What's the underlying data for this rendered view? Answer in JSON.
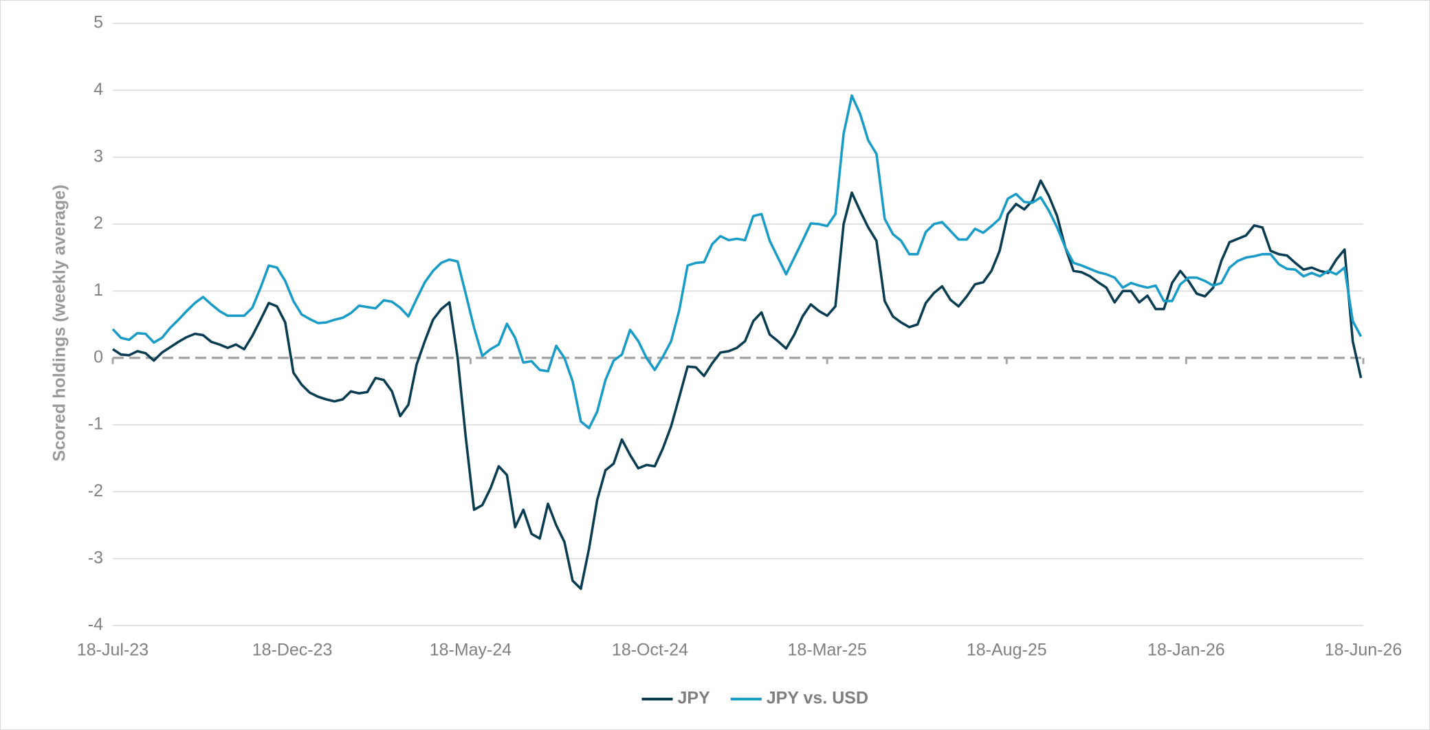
{
  "chart_data": {
    "type": "line",
    "y_label": "Scored holdings (weekly average)",
    "x": [
      "2023-07-18",
      "2023-07-25",
      "2023-08-01",
      "2023-08-08",
      "2023-08-15",
      "2023-08-22",
      "2023-08-29",
      "2023-09-05",
      "2023-09-12",
      "2023-09-19",
      "2023-09-26",
      "2023-10-03",
      "2023-10-10",
      "2023-10-17",
      "2023-10-24",
      "2023-10-31",
      "2023-11-07",
      "2023-11-14",
      "2023-11-21",
      "2023-11-28",
      "2023-12-05",
      "2023-12-12",
      "2023-12-19",
      "2023-12-26",
      "2024-01-02",
      "2024-01-09",
      "2024-01-16",
      "2024-01-23",
      "2024-01-30",
      "2024-02-06",
      "2024-02-13",
      "2024-02-20",
      "2024-02-27",
      "2024-03-05",
      "2024-03-12",
      "2024-03-19",
      "2024-03-26",
      "2024-04-02",
      "2024-04-09",
      "2024-04-16",
      "2024-04-23",
      "2024-04-30",
      "2024-05-07",
      "2024-05-14",
      "2024-05-21",
      "2024-05-28",
      "2024-06-04",
      "2024-06-11",
      "2024-06-18",
      "2024-06-25",
      "2024-07-02",
      "2024-07-09",
      "2024-07-16",
      "2024-07-23",
      "2024-07-30",
      "2024-08-06",
      "2024-08-13",
      "2024-08-20",
      "2024-08-27",
      "2024-09-03",
      "2024-09-10",
      "2024-09-17",
      "2024-09-24",
      "2024-10-01",
      "2024-10-08",
      "2024-10-15",
      "2024-10-22",
      "2024-10-29",
      "2024-11-05",
      "2024-11-12",
      "2024-11-19",
      "2024-11-26",
      "2024-12-03",
      "2024-12-10",
      "2024-12-17",
      "2024-12-24",
      "2024-12-31",
      "2025-01-07",
      "2025-01-14",
      "2025-01-21",
      "2025-01-28",
      "2025-02-04",
      "2025-02-11",
      "2025-02-18",
      "2025-02-25",
      "2025-03-04",
      "2025-03-11",
      "2025-03-18",
      "2025-03-25",
      "2025-04-01",
      "2025-04-08",
      "2025-04-15",
      "2025-04-22",
      "2025-04-29",
      "2025-05-06",
      "2025-05-13",
      "2025-05-20",
      "2025-05-27",
      "2025-06-03",
      "2025-06-10",
      "2025-06-17",
      "2025-06-24",
      "2025-07-01",
      "2025-07-08",
      "2025-07-15",
      "2025-07-22",
      "2025-07-29",
      "2025-08-05",
      "2025-08-12",
      "2025-08-19",
      "2025-08-26",
      "2025-09-02",
      "2025-09-09",
      "2025-09-16",
      "2025-09-23",
      "2025-09-30",
      "2025-10-07",
      "2025-10-14",
      "2025-10-21",
      "2025-10-28",
      "2025-11-04",
      "2025-11-11",
      "2025-11-18",
      "2025-11-25",
      "2025-12-02",
      "2025-12-09",
      "2025-12-16",
      "2025-12-23",
      "2025-12-30",
      "2026-01-06",
      "2026-01-13",
      "2026-01-20",
      "2026-01-27",
      "2026-02-03",
      "2026-02-10",
      "2026-02-17",
      "2026-02-24",
      "2026-03-03",
      "2026-03-10",
      "2026-03-17",
      "2026-03-24",
      "2026-03-31",
      "2026-04-07",
      "2026-04-14",
      "2026-04-21",
      "2026-04-28",
      "2026-05-05",
      "2026-05-12",
      "2026-05-19",
      "2026-05-26",
      "2026-06-02",
      "2026-06-09",
      "2026-06-16"
    ],
    "series": [
      {
        "name": "JPY",
        "color": "#0b3d52",
        "values": [
          0.13,
          0.05,
          0.04,
          0.1,
          0.07,
          -0.04,
          0.08,
          0.16,
          0.24,
          0.31,
          0.36,
          0.34,
          0.24,
          0.2,
          0.15,
          0.2,
          0.13,
          0.33,
          0.57,
          0.82,
          0.77,
          0.53,
          -0.22,
          -0.4,
          -0.52,
          -0.58,
          -0.62,
          -0.65,
          -0.62,
          -0.5,
          -0.53,
          -0.51,
          -0.3,
          -0.33,
          -0.5,
          -0.87,
          -0.7,
          -0.1,
          0.25,
          0.57,
          0.73,
          0.83,
          0,
          -1.2,
          -2.27,
          -2.2,
          -1.95,
          -1.62,
          -1.75,
          -2.53,
          -2.27,
          -2.63,
          -2.7,
          -2.18,
          -2.5,
          -2.75,
          -3.33,
          -3.45,
          -2.85,
          -2.12,
          -1.68,
          -1.58,
          -1.22,
          -1.45,
          -1.65,
          -1.6,
          -1.62,
          -1.35,
          -1.02,
          -0.58,
          -0.13,
          -0.14,
          -0.27,
          -0.08,
          0.08,
          0.1,
          0.15,
          0.25,
          0.55,
          0.68,
          0.35,
          0.25,
          0.14,
          0.35,
          0.62,
          0.8,
          0.7,
          0.63,
          0.77,
          2.0,
          2.47,
          2.2,
          1.95,
          1.75,
          0.85,
          0.62,
          0.53,
          0.46,
          0.5,
          0.82,
          0.97,
          1.07,
          0.87,
          0.77,
          0.92,
          1.1,
          1.13,
          1.3,
          1.6,
          2.15,
          2.3,
          2.22,
          2.35,
          2.65,
          2.42,
          2.12,
          1.65,
          1.3,
          1.28,
          1.22,
          1.13,
          1.05,
          0.83,
          1.0,
          1.0,
          0.83,
          0.93,
          0.73,
          0.73,
          1.12,
          1.3,
          1.15,
          0.96,
          0.92,
          1.05,
          1.45,
          1.73,
          1.78,
          1.83,
          1.98,
          1.95,
          1.6,
          1.55,
          1.53,
          1.42,
          1.32,
          1.35,
          1.3,
          1.27,
          1.47,
          1.62,
          0.25,
          -0.3
        ]
      },
      {
        "name": "JPY vs. USD",
        "color": "#1a9cc6",
        "values": [
          0.43,
          0.3,
          0.27,
          0.37,
          0.36,
          0.23,
          0.3,
          0.45,
          0.57,
          0.7,
          0.82,
          0.91,
          0.8,
          0.7,
          0.63,
          0.63,
          0.63,
          0.75,
          1.05,
          1.38,
          1.35,
          1.15,
          0.85,
          0.65,
          0.58,
          0.52,
          0.53,
          0.57,
          0.6,
          0.67,
          0.78,
          0.76,
          0.74,
          0.86,
          0.84,
          0.75,
          0.62,
          0.88,
          1.13,
          1.3,
          1.42,
          1.47,
          1.44,
          0.95,
          0.45,
          0.03,
          0.13,
          0.2,
          0.51,
          0.3,
          -0.07,
          -0.05,
          -0.18,
          -0.2,
          0.18,
          0.0,
          -0.35,
          -0.95,
          -1.05,
          -0.8,
          -0.33,
          -0.04,
          0.05,
          0.42,
          0.25,
          0.0,
          -0.18,
          0.02,
          0.25,
          0.72,
          1.38,
          1.42,
          1.43,
          1.7,
          1.82,
          1.76,
          1.78,
          1.76,
          2.12,
          2.15,
          1.75,
          1.5,
          1.25,
          1.5,
          1.75,
          2.01,
          2.0,
          1.97,
          2.15,
          3.35,
          3.92,
          3.65,
          3.25,
          3.05,
          2.08,
          1.85,
          1.75,
          1.55,
          1.55,
          1.88,
          2.0,
          2.03,
          1.9,
          1.77,
          1.77,
          1.93,
          1.87,
          1.97,
          2.08,
          2.38,
          2.45,
          2.33,
          2.32,
          2.4,
          2.2,
          1.95,
          1.65,
          1.42,
          1.38,
          1.33,
          1.28,
          1.25,
          1.2,
          1.05,
          1.12,
          1.08,
          1.05,
          1.08,
          0.85,
          0.85,
          1.1,
          1.2,
          1.2,
          1.15,
          1.08,
          1.12,
          1.35,
          1.45,
          1.5,
          1.52,
          1.55,
          1.55,
          1.4,
          1.33,
          1.32,
          1.22,
          1.27,
          1.22,
          1.3,
          1.25,
          1.35,
          0.55,
          0.32
        ]
      }
    ],
    "xlim": [
      "2023-07-18",
      "2026-06-18"
    ],
    "xticks": [
      {
        "value": "2023-07-18",
        "label": "18-Jul-23"
      },
      {
        "value": "2023-12-18",
        "label": "18-Dec-23"
      },
      {
        "value": "2024-05-18",
        "label": "18-May-24"
      },
      {
        "value": "2024-10-18",
        "label": "18-Oct-24"
      },
      {
        "value": "2025-03-18",
        "label": "18-Mar-25"
      },
      {
        "value": "2025-08-18",
        "label": "18-Aug-25"
      },
      {
        "value": "2026-01-18",
        "label": "18-Jan-26"
      },
      {
        "value": "2026-06-18",
        "label": "18-Jun-26"
      }
    ],
    "ylim": [
      -4,
      5
    ],
    "yticks": [
      -4,
      -3,
      -2,
      -1,
      0,
      1,
      2,
      3,
      4,
      5
    ],
    "grid": true,
    "legend": "bottom"
  }
}
